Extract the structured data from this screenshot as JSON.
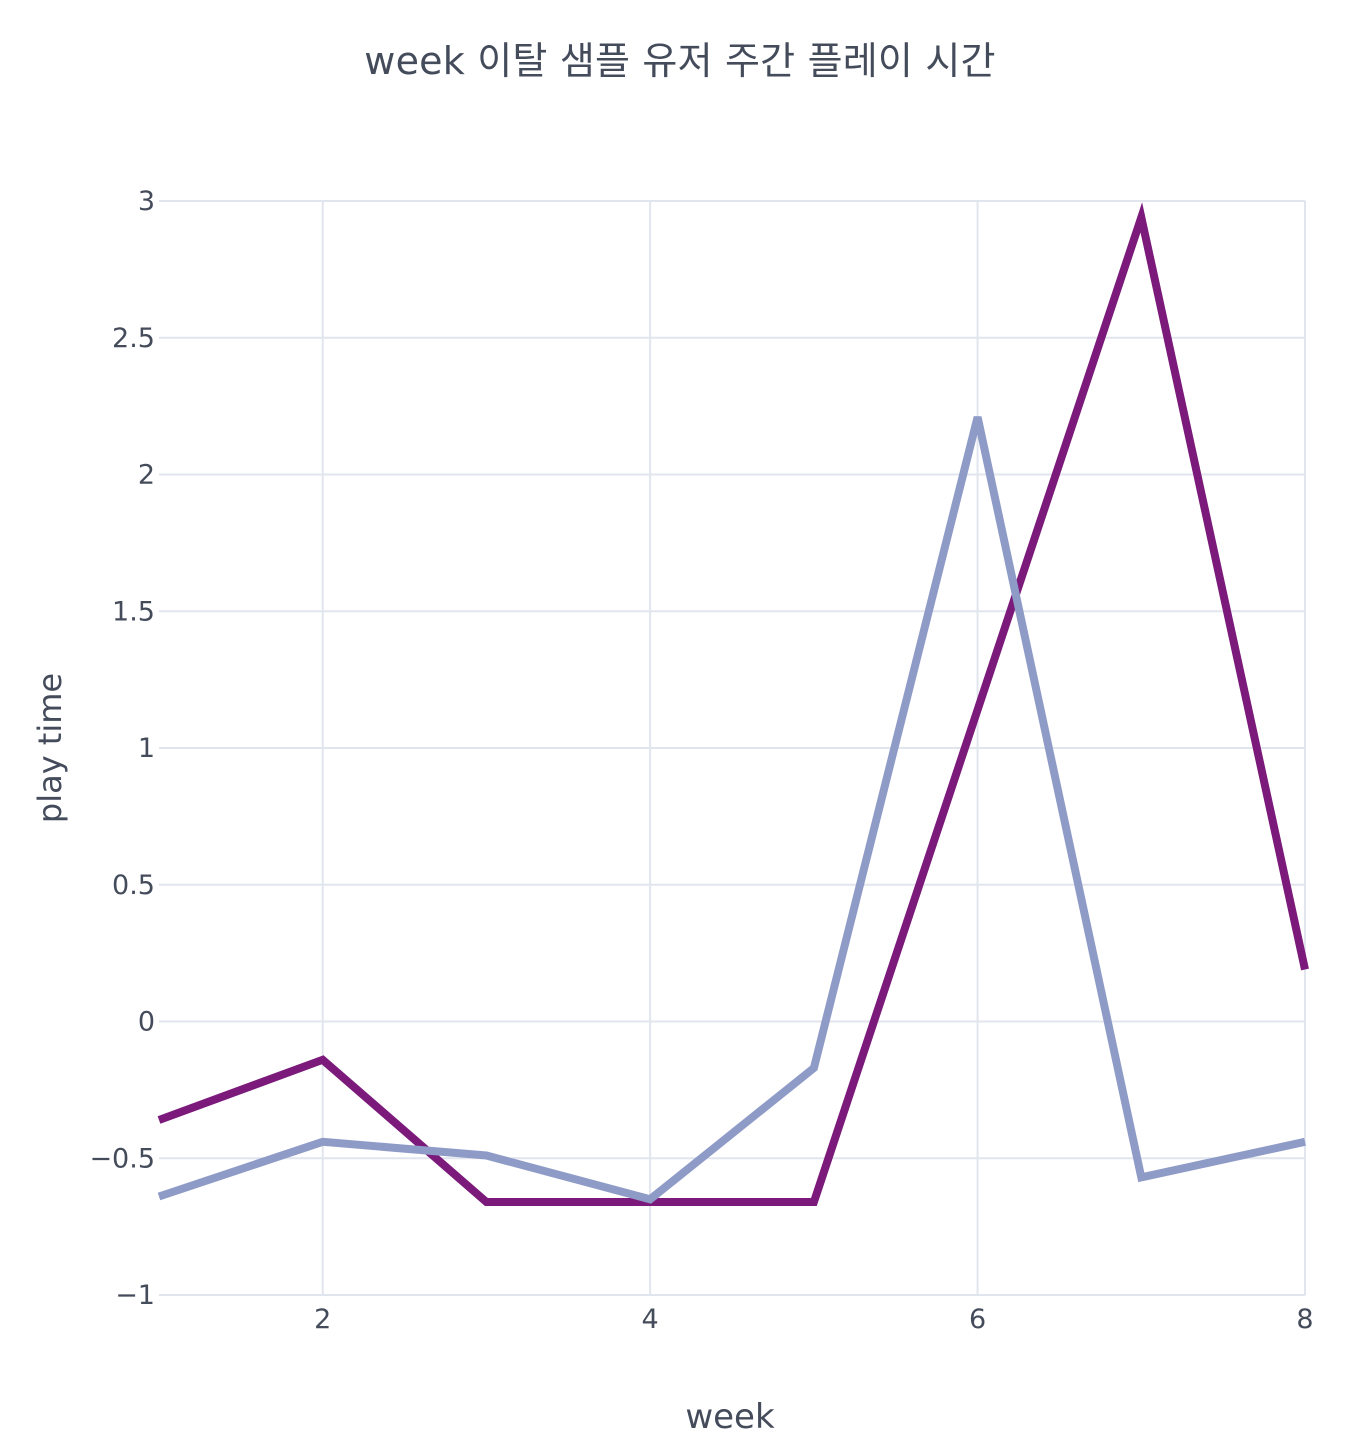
{
  "chart_data": {
    "type": "line",
    "title": "week 이탈 샘플 유저 주간 플레이 시간",
    "xlabel": "week",
    "ylabel": "play time",
    "xlim": [
      1,
      8
    ],
    "ylim": [
      -1,
      3
    ],
    "xticks": [
      2,
      4,
      6,
      8
    ],
    "yticks": [
      -1,
      -0.5,
      0,
      0.5,
      1,
      1.5,
      2,
      2.5,
      3
    ],
    "ytick_labels": [
      "−1",
      "−0.5",
      "0",
      "0.5",
      "1",
      "1.5",
      "2",
      "2.5",
      "3"
    ],
    "grid": true,
    "legend": "none",
    "x": [
      1,
      2,
      3,
      4,
      5,
      6,
      7,
      8
    ],
    "series": [
      {
        "color": "#7b1a7b",
        "values": [
          -0.36,
          -0.14,
          -0.66,
          -0.66,
          -0.66,
          1.14,
          2.94,
          0.19
        ]
      },
      {
        "color": "#8f9bc7",
        "values": [
          -0.64,
          -0.44,
          -0.49,
          -0.65,
          -0.17,
          2.21,
          -0.57,
          -0.44
        ]
      }
    ]
  }
}
